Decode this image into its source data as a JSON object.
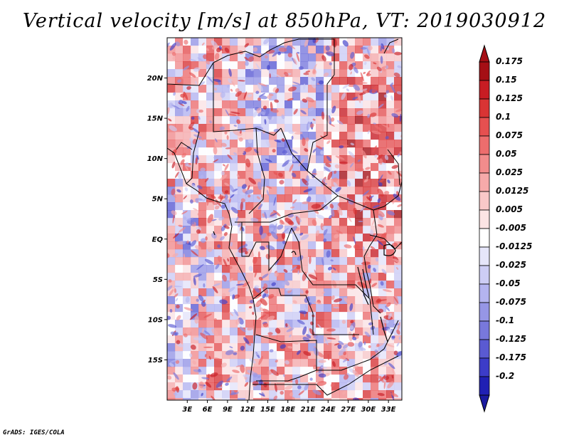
{
  "title": "Vertical velocity [m/s] at 850hPa, VT: 2019030912",
  "credit": "GrADS: IGES/COLA",
  "map": {
    "lon_range": [
      0,
      35
    ],
    "lat_range": [
      -20,
      25
    ],
    "lat_ticks": [
      {
        "label": "20N",
        "value": 20
      },
      {
        "label": "15N",
        "value": 15
      },
      {
        "label": "10N",
        "value": 10
      },
      {
        "label": "5N",
        "value": 5
      },
      {
        "label": "EQ",
        "value": 0
      },
      {
        "label": "5S",
        "value": -5
      },
      {
        "label": "10S",
        "value": -10
      },
      {
        "label": "15S",
        "value": -15
      }
    ],
    "lon_ticks": [
      {
        "label": "3E",
        "value": 3
      },
      {
        "label": "6E",
        "value": 6
      },
      {
        "label": "9E",
        "value": 9
      },
      {
        "label": "12E",
        "value": 12
      },
      {
        "label": "15E",
        "value": 15
      },
      {
        "label": "18E",
        "value": 18
      },
      {
        "label": "21E",
        "value": 21
      },
      {
        "label": "24E",
        "value": 24
      },
      {
        "label": "27E",
        "value": 27
      },
      {
        "label": "30E",
        "value": 30
      },
      {
        "label": "33E",
        "value": 33
      }
    ]
  },
  "colorbar": {
    "levels": [
      {
        "label": "0.175",
        "color": "#a50f15"
      },
      {
        "label": "0.15",
        "color": "#c81c23"
      },
      {
        "label": "0.125",
        "color": "#d93434"
      },
      {
        "label": "0.1",
        "color": "#e65050"
      },
      {
        "label": "0.075",
        "color": "#ed6d6d"
      },
      {
        "label": "0.05",
        "color": "#f28c8c"
      },
      {
        "label": "0.025",
        "color": "#f6aaaa"
      },
      {
        "label": "0.0125",
        "color": "#f9c8c8"
      },
      {
        "label": "0.005",
        "color": "#fce4e4"
      },
      {
        "label": "-0.005",
        "color": "#ffffff"
      },
      {
        "label": "-0.0125",
        "color": "#e6e6fa"
      },
      {
        "label": "-0.025",
        "color": "#cdcdf5"
      },
      {
        "label": "-0.05",
        "color": "#b4b4f0"
      },
      {
        "label": "-0.075",
        "color": "#9696e6"
      },
      {
        "label": "-0.1",
        "color": "#7878dc"
      },
      {
        "label": "-0.125",
        "color": "#5a5ad2"
      },
      {
        "label": "-0.175",
        "color": "#3c3cc8"
      },
      {
        "label": "-0.2",
        "color": "#2020b4"
      }
    ],
    "top_arrow_color": "#a50f15",
    "bottom_arrow_color": "#1a1aa0"
  }
}
